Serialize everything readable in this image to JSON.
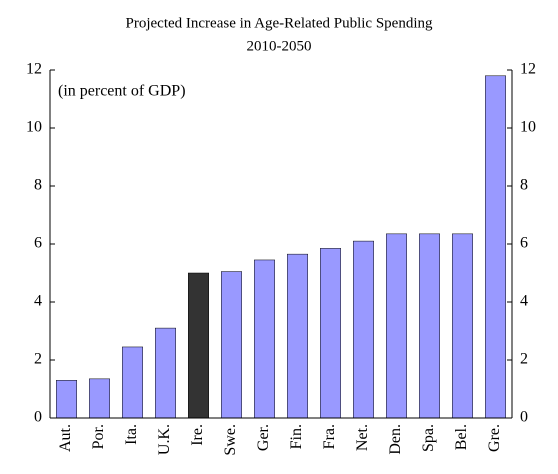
{
  "chart_data": {
    "type": "bar",
    "title": "Projected Increase in Age-Related Public Spending",
    "subtitle": "2010-2050",
    "annotation": "(in percent of GDP)",
    "categories": [
      "Aut.",
      "Por.",
      "Ita.",
      "U.K.",
      "Ire.",
      "Swe.",
      "Ger.",
      "Fin.",
      "Fra.",
      "Net.",
      "Den.",
      "Spa.",
      "Bel.",
      "Gre."
    ],
    "values": [
      1.3,
      1.35,
      2.45,
      3.1,
      5.0,
      5.05,
      5.45,
      5.65,
      5.85,
      6.1,
      6.35,
      6.35,
      6.35,
      11.8
    ],
    "colors": [
      "#9999ff",
      "#9999ff",
      "#9999ff",
      "#9999ff",
      "#333333",
      "#9999ff",
      "#9999ff",
      "#9999ff",
      "#9999ff",
      "#9999ff",
      "#9999ff",
      "#9999ff",
      "#9999ff",
      "#9999ff"
    ],
    "ylim": [
      0,
      12
    ],
    "yticks": [
      0,
      2,
      4,
      6,
      8,
      10,
      12
    ],
    "y2lim": [
      0,
      12
    ],
    "y2ticks": [
      0,
      2,
      4,
      6,
      8,
      10,
      12
    ],
    "grid": false
  }
}
